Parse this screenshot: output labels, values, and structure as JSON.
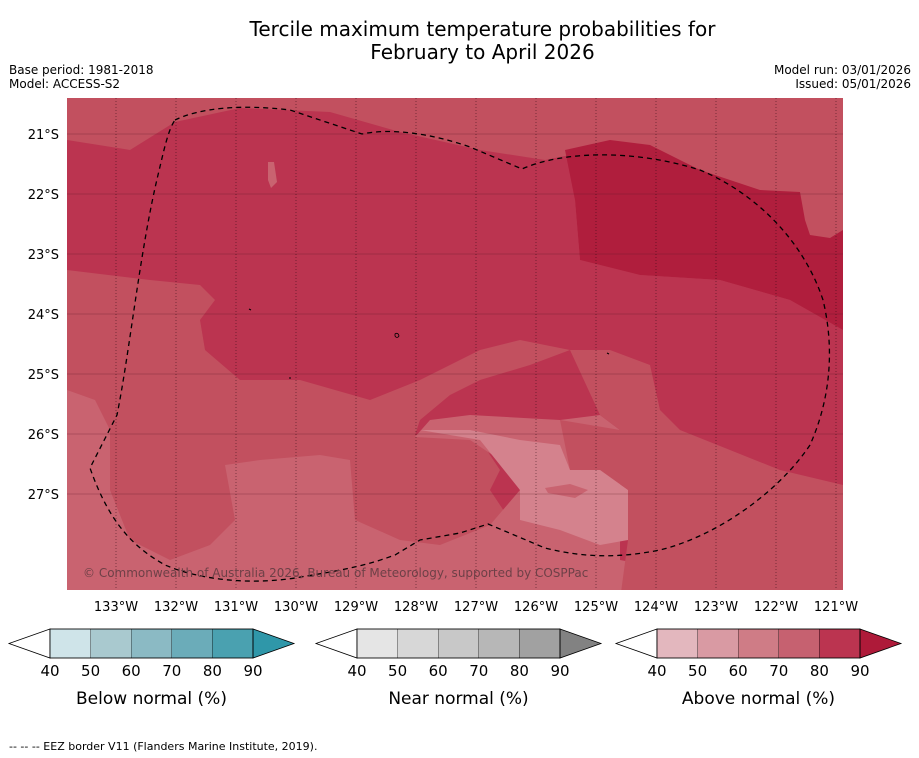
{
  "title_line1": "Tercile maximum temperature probabilities for",
  "title_line2": "February to April 2026",
  "meta_left": {
    "base_period": "Base period: 1981-2018",
    "model": "Model: ACCESS-S2"
  },
  "meta_right": {
    "model_run": "Model run: 03/01/2026",
    "issued": "Issued: 05/01/2026"
  },
  "map": {
    "lat_labels": [
      "21°S",
      "22°S",
      "23°S",
      "24°S",
      "25°S",
      "26°S",
      "27°S"
    ],
    "lon_labels": [
      "133°W",
      "132°W",
      "131°W",
      "130°W",
      "129°W",
      "128°W",
      "127°W",
      "126°W",
      "125°W",
      "124°W",
      "123°W",
      "122°W",
      "121°W"
    ],
    "copyright": "© Commonwealth of Australia 2026, Bureau of Meteorology, supported by COSPPac",
    "colors": {
      "above_50": "#d4828d",
      "above_60": "#c96370",
      "above_70": "#c2505f",
      "above_80": "#bb3450",
      "above_90": "#b01e3d"
    }
  },
  "colorbars": [
    {
      "label": "Below normal (%)",
      "ticks": [
        "40",
        "50",
        "60",
        "70",
        "80",
        "90"
      ],
      "colors": [
        "#cfe4e9",
        "#a9c9cf",
        "#8bbac4",
        "#6bacb9",
        "#4aa1b0"
      ],
      "extend_color": "#2f97a9"
    },
    {
      "label": "Near normal (%)",
      "ticks": [
        "40",
        "50",
        "60",
        "70",
        "80",
        "90"
      ],
      "colors": [
        "#e5e5e5",
        "#d7d7d7",
        "#c8c8c8",
        "#b7b7b7",
        "#a1a1a1"
      ],
      "extend_color": "#828282"
    },
    {
      "label": "Above normal (%)",
      "ticks": [
        "40",
        "50",
        "60",
        "70",
        "80",
        "90"
      ],
      "colors": [
        "#e3b7be",
        "#d99aa3",
        "#cf7c86",
        "#c66170",
        "#bb3450"
      ],
      "extend_color": "#ae1a39"
    }
  ],
  "footer": "--  --  -- EEZ border V11 (Flanders Marine Institute, 2019)."
}
